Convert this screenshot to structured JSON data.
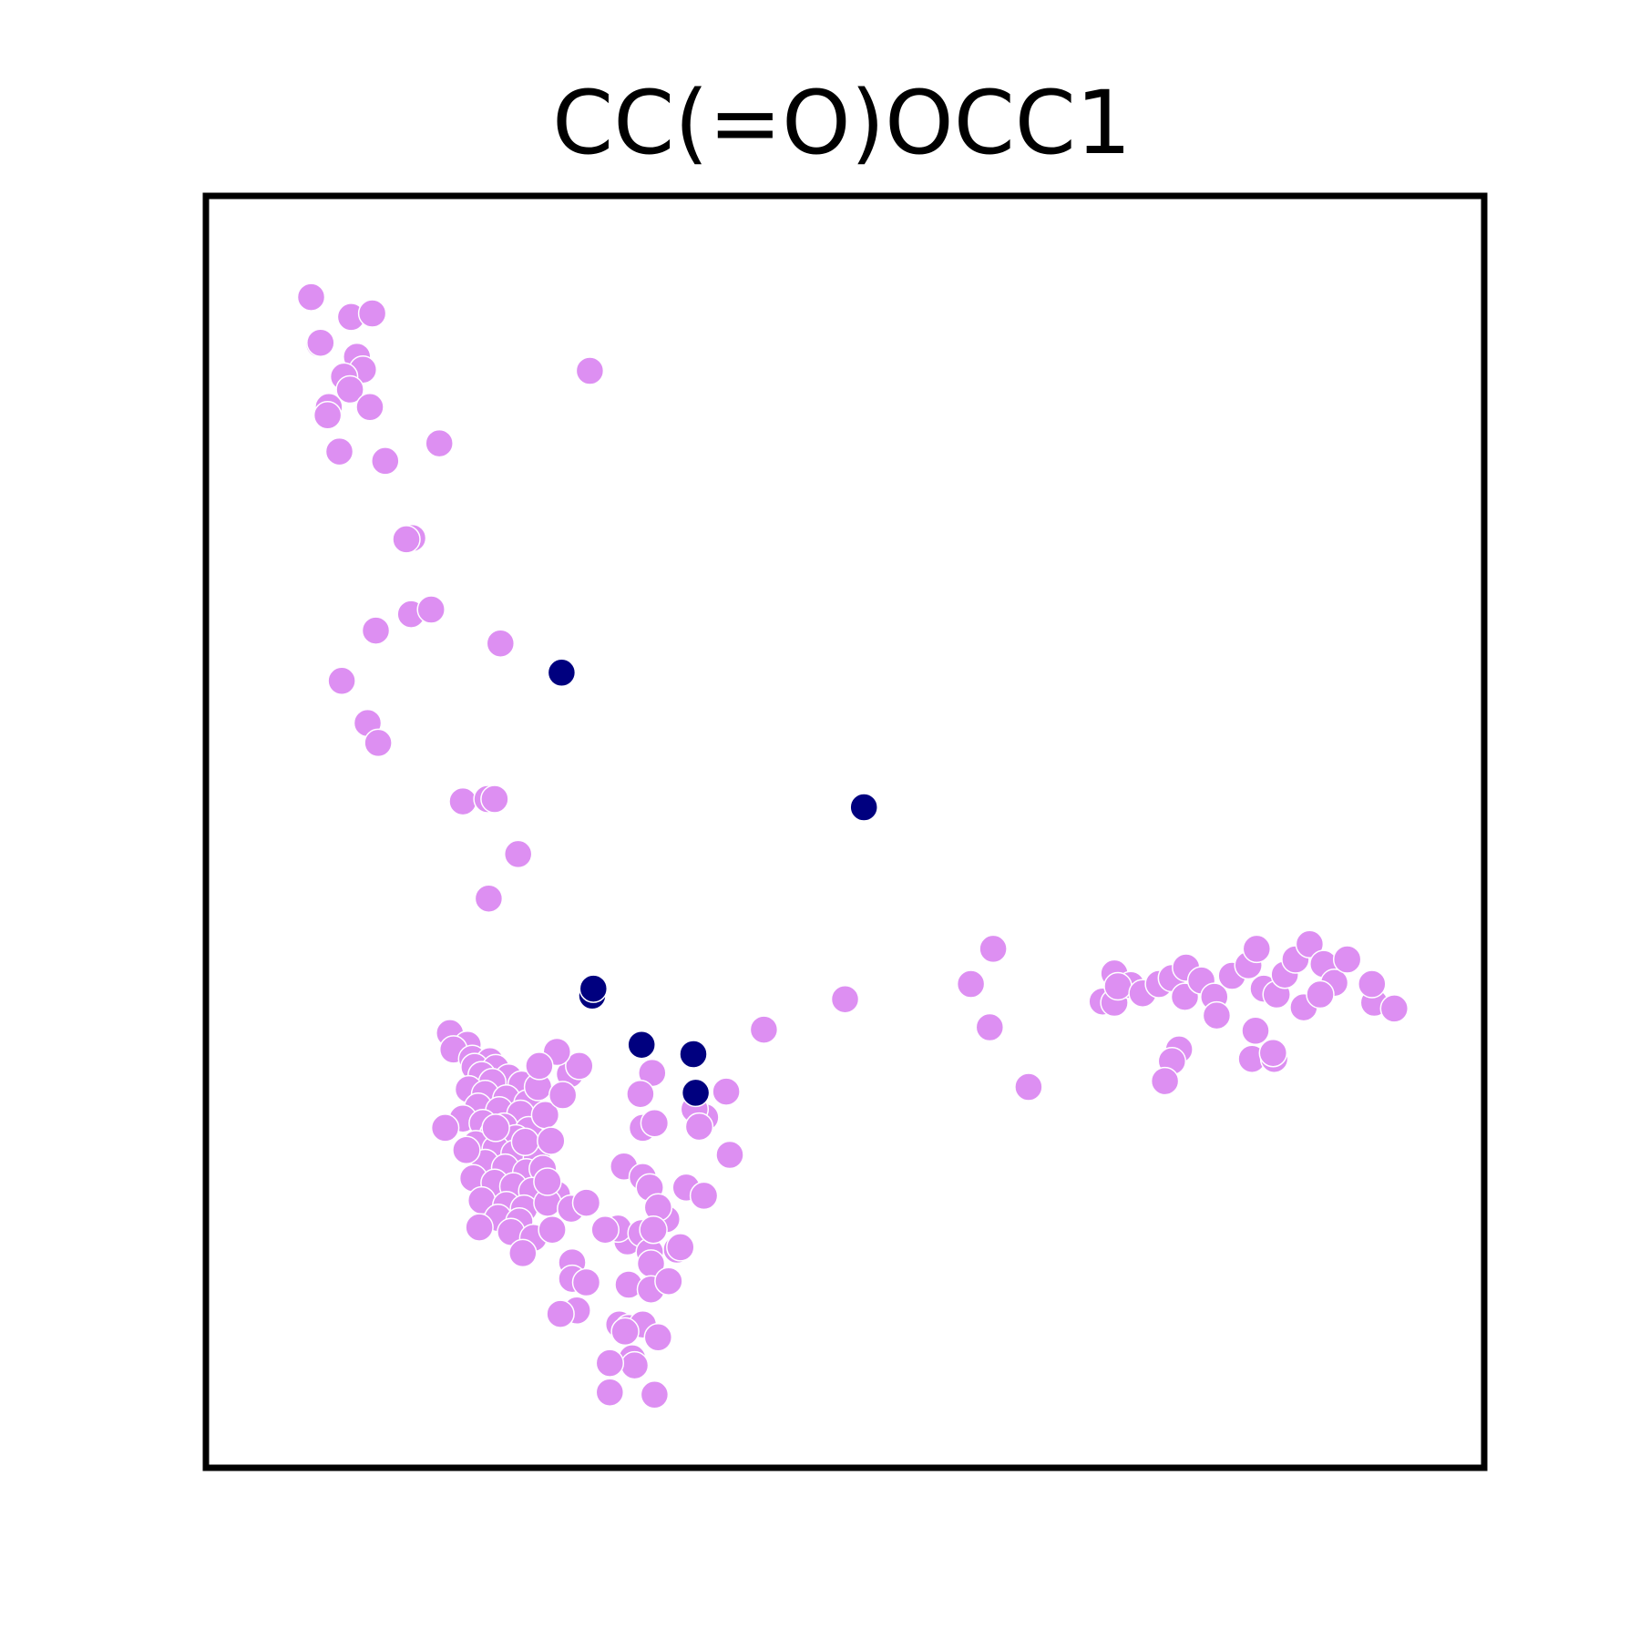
{
  "chart_data": {
    "type": "scatter",
    "title": "CC(=O)OCC1",
    "xlabel": "",
    "ylabel": "",
    "xlim": [
      0,
      100
    ],
    "ylim": [
      0,
      100
    ],
    "grid": false,
    "axis_ticks": false,
    "legend": "none",
    "series": [
      {
        "color": "#dd8ff2",
        "marker_size": 30,
        "points": [
          [
            4.6,
            95.7
          ],
          [
            8.0,
            94.0
          ],
          [
            9.8,
            94.3
          ],
          [
            5.3,
            91.7
          ],
          [
            5.4,
            91.8
          ],
          [
            8.5,
            90.6
          ],
          [
            9.0,
            89.5
          ],
          [
            7.4,
            88.9
          ],
          [
            7.9,
            87.8
          ],
          [
            9.6,
            86.3
          ],
          [
            6.1,
            86.3
          ],
          [
            6.0,
            85.6
          ],
          [
            7.0,
            82.5
          ],
          [
            10.9,
            81.7
          ],
          [
            13.2,
            75.1
          ],
          [
            15.5,
            83.2
          ],
          [
            12.7,
            75.0
          ],
          [
            13.1,
            68.6
          ],
          [
            14.8,
            69.0
          ],
          [
            10.1,
            67.2
          ],
          [
            7.2,
            62.9
          ],
          [
            9.4,
            59.3
          ],
          [
            10.3,
            57.6
          ],
          [
            28.3,
            89.4
          ],
          [
            20.7,
            66.1
          ],
          [
            17.5,
            52.6
          ],
          [
            19.6,
            52.8
          ],
          [
            20.2,
            52.8
          ],
          [
            22.2,
            48.1
          ],
          [
            19.7,
            44.3
          ],
          [
            16.4,
            32.8
          ],
          [
            17.9,
            31.8
          ],
          [
            16.7,
            31.4
          ],
          [
            18.3,
            30.6
          ],
          [
            19.8,
            30.4
          ],
          [
            18.5,
            29.9
          ],
          [
            20.3,
            29.8
          ],
          [
            19.1,
            29.2
          ],
          [
            21.4,
            29.0
          ],
          [
            20.0,
            28.6
          ],
          [
            22.5,
            28.4
          ],
          [
            18.0,
            28.0
          ],
          [
            19.4,
            27.6
          ],
          [
            21.2,
            27.2
          ],
          [
            23.0,
            26.8
          ],
          [
            18.8,
            26.5
          ],
          [
            20.6,
            26.2
          ],
          [
            22.4,
            25.9
          ],
          [
            17.5,
            25.5
          ],
          [
            19.2,
            25.1
          ],
          [
            21.0,
            24.8
          ],
          [
            23.1,
            24.5
          ],
          [
            24.5,
            25.8
          ],
          [
            20.1,
            24.2
          ],
          [
            22.0,
            23.8
          ],
          [
            18.6,
            23.3
          ],
          [
            20.3,
            22.9
          ],
          [
            21.9,
            22.5
          ],
          [
            23.8,
            22.1
          ],
          [
            19.4,
            21.7
          ],
          [
            21.1,
            21.3
          ],
          [
            22.9,
            20.9
          ],
          [
            24.3,
            21.2
          ],
          [
            18.4,
            20.4
          ],
          [
            20.2,
            20.0
          ],
          [
            21.8,
            19.7
          ],
          [
            23.4,
            19.3
          ],
          [
            25.5,
            19.0
          ],
          [
            19.1,
            18.5
          ],
          [
            21.2,
            18.1
          ],
          [
            22.7,
            17.8
          ],
          [
            24.7,
            18.3
          ],
          [
            20.5,
            17.0
          ],
          [
            22.3,
            16.7
          ],
          [
            18.9,
            16.2
          ],
          [
            21.6,
            15.8
          ],
          [
            23.5,
            15.3
          ],
          [
            25.1,
            16.0
          ],
          [
            26.7,
            17.8
          ],
          [
            28.0,
            18.3
          ],
          [
            22.6,
            14.0
          ],
          [
            26.8,
            13.2
          ],
          [
            26.8,
            11.8
          ],
          [
            28.0,
            11.5
          ],
          [
            27.2,
            9.1
          ],
          [
            25.8,
            8.8
          ],
          [
            30.8,
            7.9
          ],
          [
            31.6,
            7.6
          ],
          [
            32.8,
            7.9
          ],
          [
            31.3,
            7.3
          ],
          [
            34.1,
            6.8
          ],
          [
            31.9,
            5.0
          ],
          [
            32.1,
            4.4
          ],
          [
            30.0,
            4.6
          ],
          [
            30.0,
            2.1
          ],
          [
            33.8,
            1.9
          ],
          [
            31.5,
            15.0
          ],
          [
            30.7,
            16.1
          ],
          [
            32.7,
            15.7
          ],
          [
            34.8,
            16.9
          ],
          [
            35.7,
            14.3
          ],
          [
            33.4,
            14.1
          ],
          [
            33.5,
            13.1
          ],
          [
            31.6,
            11.3
          ],
          [
            33.5,
            10.9
          ],
          [
            35.0,
            11.6
          ],
          [
            29.6,
            16.0
          ],
          [
            31.2,
            21.4
          ],
          [
            32.8,
            20.5
          ],
          [
            33.4,
            19.6
          ],
          [
            34.1,
            17.9
          ],
          [
            33.7,
            16.0
          ],
          [
            36.5,
            19.6
          ],
          [
            38.0,
            18.9
          ],
          [
            40.2,
            22.4
          ],
          [
            38.1,
            25.6
          ],
          [
            37.2,
            26.3
          ],
          [
            39.9,
            27.8
          ],
          [
            33.6,
            29.4
          ],
          [
            32.6,
            27.6
          ],
          [
            32.8,
            24.7
          ],
          [
            33.8,
            25.1
          ],
          [
            37.6,
            24.8
          ],
          [
            36.0,
            14.5
          ],
          [
            16.0,
            24.7
          ],
          [
            17.8,
            22.8
          ],
          [
            20.3,
            24.7
          ],
          [
            22.8,
            23.5
          ],
          [
            24.7,
            20.1
          ],
          [
            25.0,
            23.6
          ],
          [
            23.9,
            28.2
          ],
          [
            26.6,
            29.3
          ],
          [
            27.4,
            30.0
          ],
          [
            25.5,
            31.2
          ],
          [
            24.0,
            30.0
          ],
          [
            26.0,
            27.5
          ],
          [
            43.1,
            33.1
          ],
          [
            50.0,
            35.7
          ],
          [
            60.7,
            37.0
          ],
          [
            62.3,
            33.3
          ],
          [
            65.6,
            28.2
          ],
          [
            62.6,
            40.0
          ],
          [
            71.9,
            35.5
          ],
          [
            72.9,
            35.4
          ],
          [
            72.9,
            37.9
          ],
          [
            74.3,
            36.9
          ],
          [
            73.2,
            36.8
          ],
          [
            75.3,
            36.2
          ],
          [
            76.7,
            37.0
          ],
          [
            77.8,
            37.5
          ],
          [
            78.9,
            35.9
          ],
          [
            79.0,
            38.4
          ],
          [
            80.3,
            37.3
          ],
          [
            81.4,
            35.9
          ],
          [
            82.9,
            37.7
          ],
          [
            84.3,
            38.6
          ],
          [
            85.6,
            36.6
          ],
          [
            86.7,
            36.1
          ],
          [
            87.4,
            37.8
          ],
          [
            85.0,
            40.0
          ],
          [
            88.3,
            39.1
          ],
          [
            89.5,
            40.4
          ],
          [
            90.7,
            38.7
          ],
          [
            91.6,
            37.1
          ],
          [
            92.7,
            39.1
          ],
          [
            95.0,
            35.4
          ],
          [
            96.7,
            34.9
          ],
          [
            78.4,
            31.4
          ],
          [
            77.8,
            30.4
          ],
          [
            77.2,
            28.7
          ],
          [
            81.6,
            34.3
          ],
          [
            84.9,
            33.0
          ],
          [
            84.6,
            30.6
          ],
          [
            86.5,
            30.6
          ],
          [
            86.4,
            31.1
          ],
          [
            89.0,
            35.0
          ],
          [
            90.4,
            36.1
          ],
          [
            94.8,
            37.0
          ]
        ]
      },
      {
        "color": "#00007f",
        "marker_size": 30,
        "points": [
          [
            25.9,
            63.6
          ],
          [
            51.6,
            52.1
          ],
          [
            28.5,
            36.0
          ],
          [
            28.6,
            36.6
          ],
          [
            32.7,
            31.8
          ],
          [
            37.1,
            31.0
          ],
          [
            37.3,
            27.7
          ]
        ]
      }
    ]
  }
}
